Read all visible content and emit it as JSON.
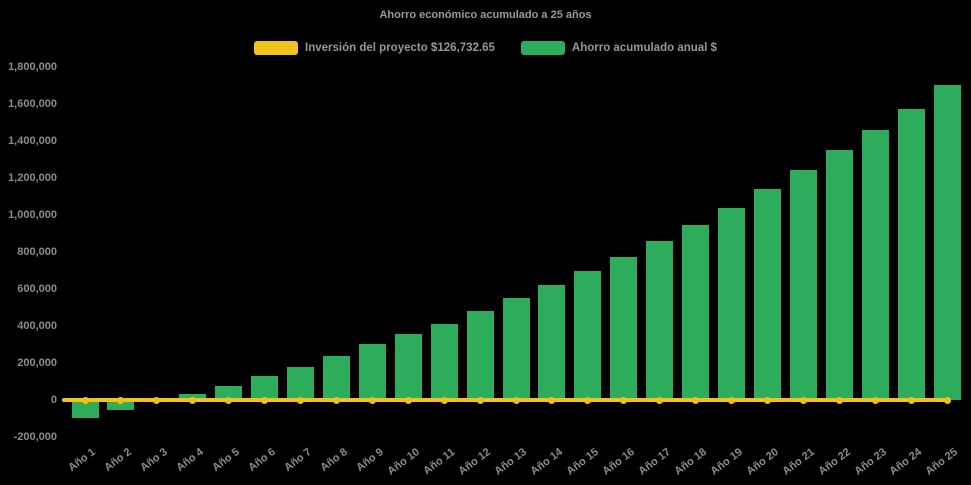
{
  "title": "Ahorro económico acumulado a 25 años",
  "background_color": "#000000",
  "legend": [
    {
      "label": "Inversión del proyecto $126,732.65",
      "color": "#f0c31a"
    },
    {
      "label": "Ahorro acumulado anual $",
      "color": "#2dad5c"
    }
  ],
  "chart_data": {
    "type": "bar",
    "title": "Ahorro económico acumulado a 25 años",
    "xlabel": "",
    "ylabel": "",
    "ylim": [
      -200000,
      1800000
    ],
    "ytick_step": 200000,
    "ytick_labels": [
      "1,800,000",
      "1,600,000",
      "1,400,000",
      "1,200,000",
      "1,000,000",
      "800,000",
      "600,000",
      "400,000",
      "200,000",
      "0",
      "-200,000"
    ],
    "grid": false,
    "legend_position": "top-center",
    "categories": [
      "Año 1",
      "Año 2",
      "Año 3",
      "Año 4",
      "Año 5",
      "Año 6",
      "Año 7",
      "Año 8",
      "Año 9",
      "Año 10",
      "Año 11",
      "Año 12",
      "Año 13",
      "Año 14",
      "Año 15",
      "Año 16",
      "Año 17",
      "Año 18",
      "Año 19",
      "Año 20",
      "Año 21",
      "Año 22",
      "Año 23",
      "Año 24",
      "Año 25"
    ],
    "series": [
      {
        "name": "Inversión del proyecto $126,732.65",
        "type": "line",
        "color": "#f0c31a",
        "marker": "circle",
        "values": [
          0,
          0,
          0,
          0,
          0,
          0,
          0,
          0,
          0,
          0,
          0,
          0,
          0,
          0,
          0,
          0,
          0,
          0,
          0,
          0,
          0,
          0,
          0,
          0,
          0
        ]
      },
      {
        "name": "Ahorro acumulado anual $",
        "type": "bar",
        "color": "#2dad5c",
        "values": [
          -95000,
          -55000,
          -10000,
          35000,
          78000,
          128000,
          180000,
          236000,
          300000,
          358000,
          412000,
          480000,
          548000,
          620000,
          696000,
          773000,
          860000,
          947000,
          1038000,
          1137000,
          1240000,
          1350000,
          1460000,
          1573000,
          1700000
        ]
      }
    ]
  }
}
